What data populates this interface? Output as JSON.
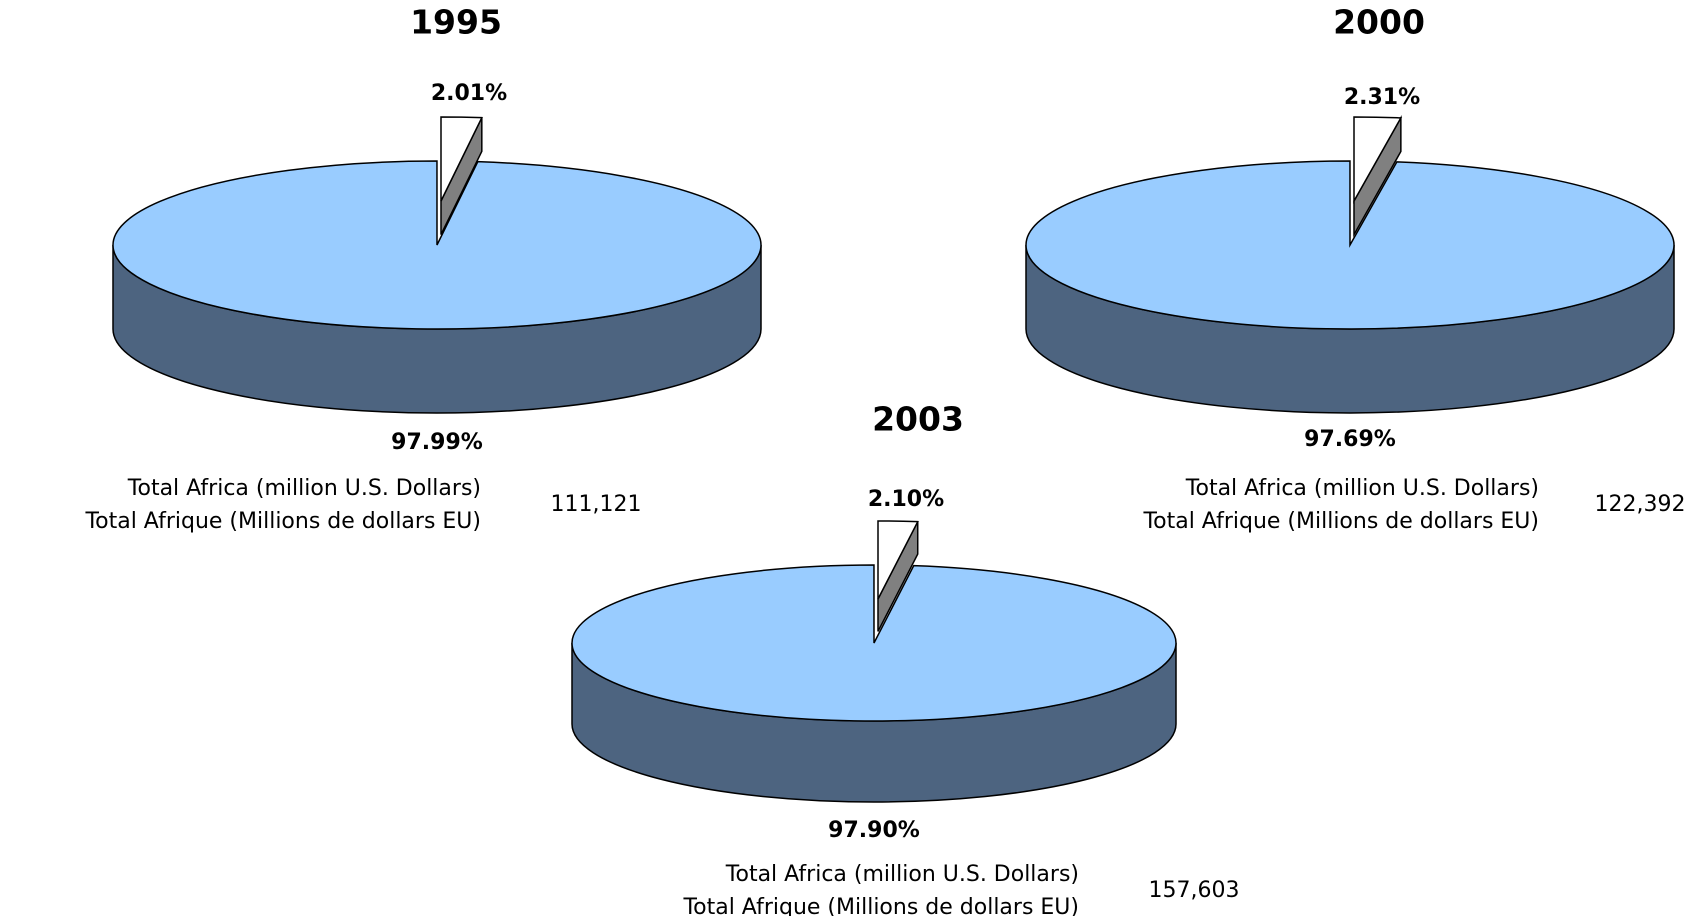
{
  "chart_data": [
    {
      "type": "pie",
      "title": "1995",
      "categories": [
        null,
        null
      ],
      "values": [
        2.01,
        97.99
      ],
      "value_labels": [
        "2.01%",
        "97.99%"
      ],
      "colors": [
        "#ffffff",
        "#99ccff"
      ],
      "side_color": "#4d6480",
      "edge_color": "#808080",
      "note_lines": [
        "Total Africa (million U.S. Dollars)",
        "Total Afrique (Millions de dollars EU)"
      ],
      "total": "111,121"
    },
    {
      "type": "pie",
      "title": "2000",
      "categories": [
        null,
        null
      ],
      "values": [
        2.31,
        97.69
      ],
      "value_labels": [
        "2.31%",
        "97.69%"
      ],
      "colors": [
        "#ffffff",
        "#99ccff"
      ],
      "side_color": "#4d6480",
      "edge_color": "#808080",
      "note_lines": [
        "Total Africa (million U.S. Dollars)",
        "Total Afrique (Millions de dollars EU)"
      ],
      "total": "122,392"
    },
    {
      "type": "pie",
      "title": "2003",
      "categories": [
        null,
        null
      ],
      "values": [
        2.1,
        97.9
      ],
      "value_labels": [
        "2.10%",
        "97.90%"
      ],
      "colors": [
        "#ffffff",
        "#99ccff"
      ],
      "side_color": "#4d6480",
      "edge_color": "#808080",
      "note_lines": [
        "Total Africa (million U.S. Dollars)",
        "Total Afrique (Millions de dollars EU)"
      ],
      "total": "157,603"
    }
  ]
}
